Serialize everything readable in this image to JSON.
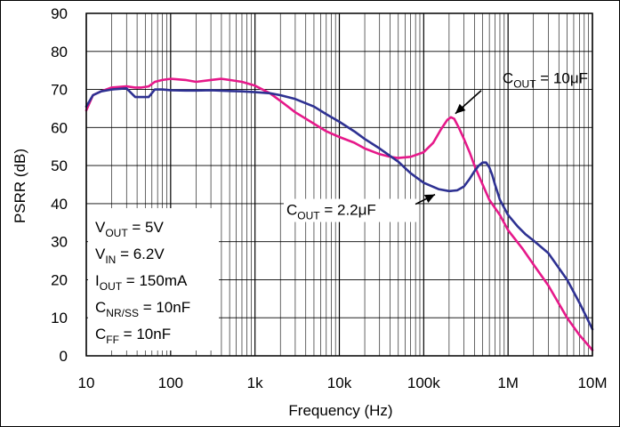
{
  "chart_data": {
    "type": "line",
    "title": "",
    "xlabel": "Frequency (Hz)",
    "ylabel": "PSRR (dB)",
    "xscale": "log",
    "xlim": [
      10,
      10000000
    ],
    "ylim": [
      0,
      90
    ],
    "grid": true,
    "x_tick_labels": [
      "10",
      "100",
      "1k",
      "10k",
      "100k",
      "1M",
      "10M"
    ],
    "y_tick_labels": [
      "0",
      "10",
      "20",
      "30",
      "40",
      "50",
      "60",
      "70",
      "80",
      "90"
    ],
    "series": [
      {
        "label_main": "C",
        "label_sub": "OUT",
        "label_rest": " = 10μF",
        "color": "#e6198a",
        "x": [
          10,
          12,
          15,
          20,
          30,
          38,
          45,
          55,
          65,
          80,
          100,
          150,
          200,
          300,
          400,
          500,
          700,
          1000,
          1500,
          2000,
          3000,
          5000,
          7000,
          10000,
          15000,
          20000,
          30000,
          40000,
          50000,
          70000,
          100000,
          130000,
          160000,
          190000,
          210000,
          230000,
          260000,
          300000,
          350000,
          400000,
          500000,
          600000,
          800000,
          1000000,
          1500000,
          2000000,
          3000000,
          5000000,
          7000000,
          10000000
        ],
        "y": [
          64.5,
          68.5,
          69.5,
          70.5,
          70.8,
          70.5,
          70.5,
          70.8,
          72,
          72.5,
          72.8,
          72.5,
          72,
          72.5,
          72.8,
          72.5,
          72,
          71,
          69,
          67,
          64,
          61,
          59,
          57.5,
          56,
          54.5,
          53,
          52.3,
          52,
          52.3,
          53.5,
          56,
          59.5,
          62,
          62.7,
          62.3,
          60,
          57,
          53.5,
          50,
          45,
          41,
          37,
          33,
          28,
          24,
          18.5,
          10,
          5.5,
          1.5
        ]
      },
      {
        "label_main": "C",
        "label_sub": "OUT",
        "label_rest": " = 2.2μF",
        "color": "#2e3192",
        "x": [
          10,
          12,
          15,
          20,
          30,
          38,
          45,
          55,
          65,
          80,
          100,
          150,
          200,
          300,
          500,
          700,
          1000,
          1500,
          2000,
          3000,
          5000,
          7000,
          10000,
          15000,
          20000,
          30000,
          50000,
          70000,
          100000,
          150000,
          200000,
          250000,
          300000,
          350000,
          400000,
          450000,
          500000,
          550000,
          600000,
          650000,
          700000,
          800000,
          1000000,
          1300000,
          1600000,
          2000000,
          3000000,
          5000000,
          7000000,
          10000000
        ],
        "y": [
          65.5,
          68.5,
          69.5,
          70,
          70.3,
          68,
          68,
          68,
          70,
          70,
          69.8,
          69.7,
          69.7,
          69.8,
          69.6,
          69.5,
          69.3,
          69,
          68.5,
          67.5,
          65.5,
          63.5,
          61.5,
          59,
          57,
          54.5,
          51,
          48,
          45.5,
          43.8,
          43.3,
          43.5,
          44.5,
          46.5,
          48.5,
          50,
          50.8,
          50.8,
          49.5,
          47.5,
          45,
          41,
          37,
          34,
          32,
          30.3,
          27,
          20,
          14,
          7
        ]
      }
    ],
    "annotations": [
      {
        "series_index": 0,
        "label_x": 10000000,
        "label_y": 73
      },
      {
        "series_index": 1,
        "label_x": 1500,
        "label_y": 34
      }
    ],
    "conditions_box": [
      {
        "main": "V",
        "sub": "OUT",
        "rest": " = 5V"
      },
      {
        "main": "V",
        "sub": "IN",
        "rest": " = 6.2V"
      },
      {
        "main": "I",
        "sub": "OUT",
        "rest": " = 150mA"
      },
      {
        "main": "C",
        "sub": "NR/SS",
        "rest": " = 10nF"
      },
      {
        "main": "C",
        "sub": "FF",
        "rest": " = 10nF"
      }
    ]
  }
}
